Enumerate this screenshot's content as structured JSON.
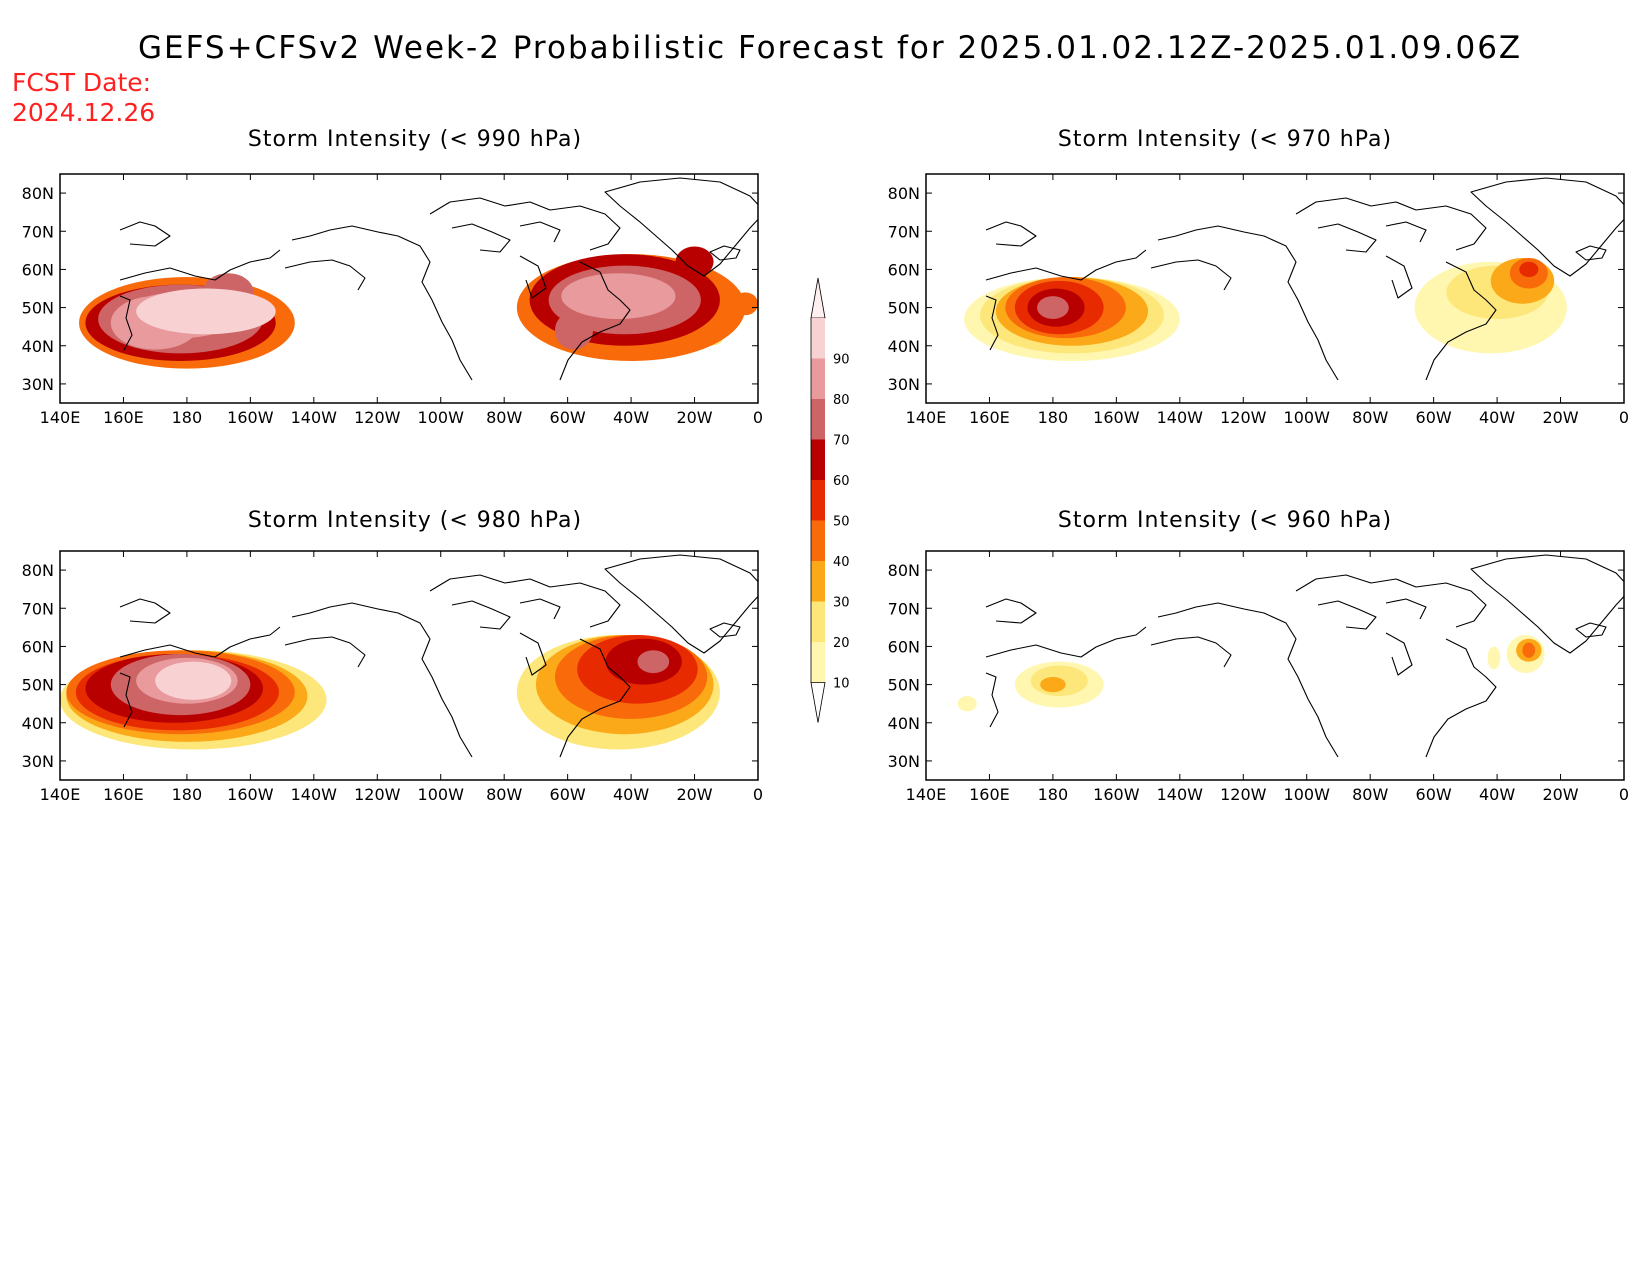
{
  "title": "GEFS+CFSv2 Week-2 Probabilistic Forecast for 2025.01.02.12Z-2025.01.09.06Z",
  "fcst_date_label": "FCST Date:",
  "fcst_date_value": "2024.12.26",
  "colors": {
    "fcst_text": "#ff2020",
    "levels": [
      "#fff7b0",
      "#fde77a",
      "#fba918",
      "#f96b0a",
      "#e82a00",
      "#b80000",
      "#cd6466",
      "#e99a9d",
      "#f8d2d3",
      "#ffeff1"
    ]
  },
  "colorbar": {
    "levels": [
      "10",
      "20",
      "30",
      "40",
      "50",
      "60",
      "70",
      "80",
      "90"
    ]
  },
  "axes": {
    "lon_ticks": [
      "140E",
      "160E",
      "180",
      "160W",
      "140W",
      "120W",
      "100W",
      "80W",
      "60W",
      "40W",
      "20W",
      "0"
    ],
    "lat_ticks": [
      "80N",
      "70N",
      "60N",
      "50N",
      "40N",
      "30N"
    ],
    "lon_range": [
      140,
      360
    ],
    "lat_range": [
      25,
      85
    ]
  },
  "panels": [
    {
      "id": "p990",
      "title": "Storm Intensity (< 990 hPa)",
      "regions": [
        {
          "lon": 186,
          "lat": 49,
          "rx": 22,
          "ry": 6,
          "p": 0.92
        },
        {
          "lon": 178,
          "lat": 48,
          "rx": 18,
          "ry": 6,
          "p": 0.88
        },
        {
          "lon": 170,
          "lat": 46,
          "rx": 14,
          "ry": 7,
          "p": 0.82
        },
        {
          "lon": 178,
          "lat": 47,
          "rx": 26,
          "ry": 9,
          "p": 0.78
        },
        {
          "lon": 193,
          "lat": 54,
          "rx": 8,
          "ry": 5,
          "p": 0.7
        },
        {
          "lon": 178,
          "lat": 46,
          "rx": 30,
          "ry": 10,
          "p": 0.62
        },
        {
          "lon": 180,
          "lat": 46,
          "rx": 34,
          "ry": 12,
          "p": 0.45
        },
        {
          "lon": 183,
          "lat": 38,
          "rx": 8,
          "ry": 3,
          "p": 0.32
        },
        {
          "lon": 316,
          "lat": 53,
          "rx": 18,
          "ry": 6,
          "p": 0.88
        },
        {
          "lon": 318,
          "lat": 52,
          "rx": 24,
          "ry": 9,
          "p": 0.78
        },
        {
          "lon": 302,
          "lat": 44,
          "rx": 6,
          "ry": 5,
          "p": 0.7
        },
        {
          "lon": 340,
          "lat": 62,
          "rx": 6,
          "ry": 4,
          "p": 0.62
        },
        {
          "lon": 318,
          "lat": 52,
          "rx": 30,
          "ry": 12,
          "p": 0.6
        },
        {
          "lon": 320,
          "lat": 50,
          "rx": 36,
          "ry": 14,
          "p": 0.45
        },
        {
          "lon": 356,
          "lat": 51,
          "rx": 4,
          "ry": 3,
          "p": 0.4
        },
        {
          "lon": 345,
          "lat": 42,
          "rx": 4,
          "ry": 2,
          "p": 0.2
        }
      ]
    },
    {
      "id": "p970",
      "title": "Storm Intensity (< 970 hPa)",
      "regions": [
        {
          "lon": 180,
          "lat": 50,
          "rx": 5,
          "ry": 3,
          "p": 0.72
        },
        {
          "lon": 181,
          "lat": 50,
          "rx": 9,
          "ry": 5,
          "p": 0.62
        },
        {
          "lon": 182,
          "lat": 50,
          "rx": 14,
          "ry": 7,
          "p": 0.5
        },
        {
          "lon": 184,
          "lat": 50,
          "rx": 19,
          "ry": 8,
          "p": 0.4
        },
        {
          "lon": 186,
          "lat": 49,
          "rx": 24,
          "ry": 9,
          "p": 0.3
        },
        {
          "lon": 186,
          "lat": 48,
          "rx": 29,
          "ry": 10,
          "p": 0.2
        },
        {
          "lon": 186,
          "lat": 47,
          "rx": 34,
          "ry": 11,
          "p": 0.12
        },
        {
          "lon": 330,
          "lat": 60,
          "rx": 3,
          "ry": 2,
          "p": 0.52
        },
        {
          "lon": 330,
          "lat": 59,
          "rx": 6,
          "ry": 4,
          "p": 0.4
        },
        {
          "lon": 328,
          "lat": 57,
          "rx": 10,
          "ry": 6,
          "p": 0.3
        },
        {
          "lon": 320,
          "lat": 54,
          "rx": 16,
          "ry": 7,
          "p": 0.2
        },
        {
          "lon": 318,
          "lat": 50,
          "rx": 24,
          "ry": 12,
          "p": 0.12
        }
      ]
    },
    {
      "id": "p980",
      "title": "Storm Intensity (< 980 hPa)",
      "regions": [
        {
          "lon": 182,
          "lat": 51,
          "rx": 12,
          "ry": 5,
          "p": 0.92
        },
        {
          "lon": 180,
          "lat": 51,
          "rx": 16,
          "ry": 6,
          "p": 0.85
        },
        {
          "lon": 178,
          "lat": 50,
          "rx": 22,
          "ry": 8,
          "p": 0.76
        },
        {
          "lon": 176,
          "lat": 49,
          "rx": 28,
          "ry": 9,
          "p": 0.66
        },
        {
          "lon": 177,
          "lat": 48,
          "rx": 32,
          "ry": 10,
          "p": 0.55
        },
        {
          "lon": 178,
          "lat": 48,
          "rx": 36,
          "ry": 11,
          "p": 0.45
        },
        {
          "lon": 180,
          "lat": 47,
          "rx": 38,
          "ry": 12,
          "p": 0.35
        },
        {
          "lon": 182,
          "lat": 46,
          "rx": 42,
          "ry": 13,
          "p": 0.22
        },
        {
          "lon": 327,
          "lat": 56,
          "rx": 5,
          "ry": 3,
          "p": 0.72
        },
        {
          "lon": 324,
          "lat": 56,
          "rx": 12,
          "ry": 6,
          "p": 0.64
        },
        {
          "lon": 322,
          "lat": 54,
          "rx": 19,
          "ry": 9,
          "p": 0.54
        },
        {
          "lon": 320,
          "lat": 52,
          "rx": 24,
          "ry": 11,
          "p": 0.44
        },
        {
          "lon": 318,
          "lat": 50,
          "rx": 28,
          "ry": 13,
          "p": 0.33
        },
        {
          "lon": 316,
          "lat": 48,
          "rx": 32,
          "ry": 15,
          "p": 0.2
        },
        {
          "lon": 297,
          "lat": 44,
          "rx": 10,
          "ry": 5,
          "p": 0.12
        }
      ]
    },
    {
      "id": "p960",
      "title": "Storm Intensity (< 960 hPa)",
      "regions": [
        {
          "lon": 180,
          "lat": 50,
          "rx": 4,
          "ry": 2,
          "p": 0.32
        },
        {
          "lon": 182,
          "lat": 51,
          "rx": 9,
          "ry": 4,
          "p": 0.2
        },
        {
          "lon": 182,
          "lat": 50,
          "rx": 14,
          "ry": 6,
          "p": 0.12
        },
        {
          "lon": 330,
          "lat": 59,
          "rx": 2,
          "ry": 2,
          "p": 0.45
        },
        {
          "lon": 330,
          "lat": 59,
          "rx": 4,
          "ry": 3,
          "p": 0.3
        },
        {
          "lon": 329,
          "lat": 58,
          "rx": 6,
          "ry": 5,
          "p": 0.15
        },
        {
          "lon": 319,
          "lat": 57,
          "rx": 2,
          "ry": 3,
          "p": 0.12
        },
        {
          "lon": 153,
          "lat": 45,
          "rx": 3,
          "ry": 2,
          "p": 0.12
        }
      ]
    }
  ]
}
